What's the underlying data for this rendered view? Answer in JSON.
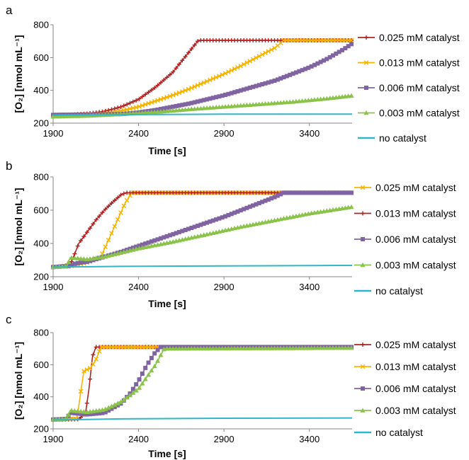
{
  "chart_data": [
    {
      "panel_label": "a",
      "type": "line",
      "xlabel": "Time [s]",
      "ylabel": "[O₂] [nmol mL⁻¹]",
      "xlim": [
        1900,
        3650
      ],
      "ylim": [
        200,
        800
      ],
      "xticks": [
        1900,
        2400,
        2900,
        3400
      ],
      "yticks": [
        200,
        400,
        600,
        800
      ],
      "legend": "right",
      "grid": false,
      "series": [
        {
          "name": "0.025 mM catalyst",
          "color": "#b22222",
          "marker": "plus",
          "points": [
            [
              1900,
              250
            ],
            [
              2000,
              252
            ],
            [
              2100,
              258
            ],
            [
              2200,
              272
            ],
            [
              2300,
              300
            ],
            [
              2400,
              345
            ],
            [
              2500,
              420
            ],
            [
              2600,
              510
            ],
            [
              2700,
              640
            ],
            [
              2750,
              705
            ],
            [
              3650,
              705
            ]
          ]
        },
        {
          "name": "0.013 mM catalyst",
          "color": "#f5b400",
          "marker": "x",
          "points": [
            [
              1900,
              250
            ],
            [
              2100,
              252
            ],
            [
              2200,
              258
            ],
            [
              2300,
              275
            ],
            [
              2400,
              300
            ],
            [
              2500,
              335
            ],
            [
              2600,
              370
            ],
            [
              2700,
              410
            ],
            [
              2800,
              455
            ],
            [
              2900,
              500
            ],
            [
              3000,
              550
            ],
            [
              3100,
              605
            ],
            [
              3200,
              660
            ],
            [
              3250,
              705
            ],
            [
              3650,
              705
            ]
          ]
        },
        {
          "name": "0.006 mM catalyst",
          "color": "#8064a2",
          "marker": "square",
          "points": [
            [
              1900,
              250
            ],
            [
              2300,
              255
            ],
            [
              2400,
              265
            ],
            [
              2500,
              280
            ],
            [
              2600,
              300
            ],
            [
              2700,
              320
            ],
            [
              2800,
              345
            ],
            [
              2900,
              370
            ],
            [
              3000,
              400
            ],
            [
              3100,
              430
            ],
            [
              3200,
              460
            ],
            [
              3300,
              500
            ],
            [
              3400,
              540
            ],
            [
              3500,
              590
            ],
            [
              3600,
              650
            ],
            [
              3650,
              685
            ]
          ]
        },
        {
          "name": "0.003 mM catalyst",
          "color": "#8bc34a",
          "marker": "triangle",
          "points": [
            [
              1900,
              240
            ],
            [
              2100,
              245
            ],
            [
              2300,
              255
            ],
            [
              2500,
              268
            ],
            [
              2700,
              285
            ],
            [
              2900,
              300
            ],
            [
              3100,
              315
            ],
            [
              3300,
              330
            ],
            [
              3500,
              350
            ],
            [
              3650,
              368
            ]
          ]
        },
        {
          "name": "no catalyst",
          "color": "#31b5c9",
          "marker": "none",
          "points": [
            [
              1900,
              248
            ],
            [
              2300,
              252
            ],
            [
              2900,
              255
            ],
            [
              3650,
              255
            ]
          ]
        }
      ]
    },
    {
      "panel_label": "b",
      "type": "line",
      "xlabel": "Time [s]",
      "ylabel": "[O₂] [nmol mL⁻¹]",
      "xlim": [
        1900,
        3650
      ],
      "ylim": [
        200,
        800
      ],
      "xticks": [
        1900,
        2400,
        2900,
        3400
      ],
      "yticks": [
        200,
        400,
        600,
        800
      ],
      "legend": "right",
      "grid": false,
      "series": [
        {
          "name": "0.025 mM catalyst",
          "color": "#f5b400",
          "marker": "x",
          "points": [
            [
              1900,
              258
            ],
            [
              2000,
              262
            ],
            [
              2100,
              285
            ],
            [
              2180,
              320
            ],
            [
              2250,
              480
            ],
            [
              2320,
              640
            ],
            [
              2360,
              705
            ],
            [
              3650,
              705
            ]
          ]
        },
        {
          "name": "0.013 mM catalyst",
          "color": "#b22222",
          "marker": "plus",
          "points": [
            [
              1900,
              258
            ],
            [
              2000,
              270
            ],
            [
              2050,
              400
            ],
            [
              2100,
              470
            ],
            [
              2150,
              540
            ],
            [
              2200,
              600
            ],
            [
              2250,
              650
            ],
            [
              2300,
              695
            ],
            [
              2330,
              705
            ],
            [
              3650,
              705
            ]
          ]
        },
        {
          "name": "0.006 mM catalyst",
          "color": "#8064a2",
          "marker": "square",
          "points": [
            [
              1900,
              258
            ],
            [
              2000,
              265
            ],
            [
              2030,
              280
            ],
            [
              2100,
              290
            ],
            [
              2200,
              320
            ],
            [
              2300,
              350
            ],
            [
              2400,
              385
            ],
            [
              2500,
              420
            ],
            [
              2600,
              455
            ],
            [
              2700,
              490
            ],
            [
              2800,
              525
            ],
            [
              2900,
              560
            ],
            [
              3000,
              600
            ],
            [
              3100,
              640
            ],
            [
              3200,
              680
            ],
            [
              3250,
              705
            ],
            [
              3650,
              705
            ]
          ]
        },
        {
          "name": "0.003 mM catalyst",
          "color": "#8bc34a",
          "marker": "triangle",
          "points": [
            [
              1900,
              258
            ],
            [
              1980,
              262
            ],
            [
              2000,
              315
            ],
            [
              2050,
              310
            ],
            [
              2100,
              305
            ],
            [
              2200,
              320
            ],
            [
              2300,
              345
            ],
            [
              2400,
              370
            ],
            [
              2600,
              410
            ],
            [
              2800,
              455
            ],
            [
              3000,
              500
            ],
            [
              3200,
              540
            ],
            [
              3400,
              580
            ],
            [
              3650,
              620
            ]
          ]
        },
        {
          "name": "no catalyst",
          "color": "#31b5c9",
          "marker": "none",
          "points": [
            [
              1900,
              258
            ],
            [
              2300,
              262
            ],
            [
              2900,
              265
            ],
            [
              3650,
              268
            ]
          ]
        }
      ]
    },
    {
      "panel_label": "c",
      "type": "line",
      "xlabel": "Time [s]",
      "ylabel": "[O₂] [nmol mL⁻¹]",
      "xlim": [
        1900,
        3650
      ],
      "ylim": [
        200,
        800
      ],
      "xticks": [
        1900,
        2400,
        2900,
        3400
      ],
      "yticks": [
        200,
        400,
        600,
        800
      ],
      "legend": "right",
      "grid": false,
      "series": [
        {
          "name": "0.025 mM catalyst",
          "color": "#b22222",
          "marker": "plus",
          "points": [
            [
              1900,
              258
            ],
            [
              2050,
              260
            ],
            [
              2090,
              300
            ],
            [
              2110,
              450
            ],
            [
              2130,
              650
            ],
            [
              2150,
              710
            ],
            [
              3650,
              710
            ]
          ]
        },
        {
          "name": "0.013 mM catalyst",
          "color": "#f5b400",
          "marker": "x",
          "points": [
            [
              1900,
              258
            ],
            [
              2040,
              265
            ],
            [
              2060,
              420
            ],
            [
              2080,
              560
            ],
            [
              2120,
              580
            ],
            [
              2150,
              630
            ],
            [
              2180,
              710
            ],
            [
              3650,
              710
            ]
          ]
        },
        {
          "name": "0.006 mM catalyst",
          "color": "#8064a2",
          "marker": "square",
          "points": [
            [
              1900,
              258
            ],
            [
              1980,
              262
            ],
            [
              2000,
              300
            ],
            [
              2050,
              295
            ],
            [
              2100,
              290
            ],
            [
              2200,
              300
            ],
            [
              2300,
              360
            ],
            [
              2350,
              420
            ],
            [
              2400,
              500
            ],
            [
              2450,
              600
            ],
            [
              2500,
              680
            ],
            [
              2530,
              710
            ],
            [
              3650,
              710
            ]
          ]
        },
        {
          "name": "0.003 mM catalyst",
          "color": "#8bc34a",
          "marker": "triangle",
          "points": [
            [
              1900,
              258
            ],
            [
              1980,
              262
            ],
            [
              2000,
              315
            ],
            [
              2050,
              310
            ],
            [
              2100,
              305
            ],
            [
              2200,
              320
            ],
            [
              2300,
              370
            ],
            [
              2400,
              450
            ],
            [
              2500,
              600
            ],
            [
              2550,
              700
            ],
            [
              3650,
              705
            ]
          ]
        },
        {
          "name": "no catalyst",
          "color": "#31b5c9",
          "marker": "none",
          "points": [
            [
              1900,
              255
            ],
            [
              2300,
              262
            ],
            [
              2900,
              266
            ],
            [
              3650,
              268
            ]
          ]
        }
      ]
    }
  ]
}
